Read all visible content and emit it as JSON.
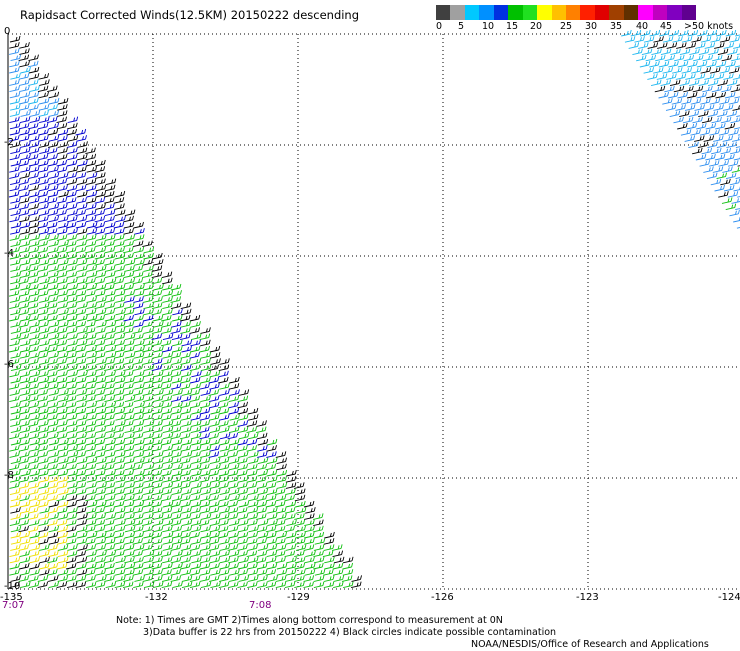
{
  "title": "Rapidsact Corrected Winds(12.5KM) 20150222 descending",
  "colorbar": {
    "colors": [
      "#404040",
      "#a0a0a0",
      "#00c8ff",
      "#0090ff",
      "#0030e0",
      "#00c000",
      "#20e020",
      "#ffff00",
      "#ffc000",
      "#ff8000",
      "#ff2000",
      "#e00000",
      "#a04000",
      "#603000",
      "#ff00ff",
      "#c000c0",
      "#8000c0",
      "#600090"
    ],
    "labels": [
      "0",
      "5",
      "10",
      "15",
      "20",
      "25",
      "30",
      "35",
      "40",
      "45",
      ">50 knots"
    ]
  },
  "map": {
    "lat_labels": [
      "0",
      "-2",
      "-4",
      "-6",
      "-8",
      "-10"
    ],
    "lon_labels": [
      "-135",
      "-132",
      "-129",
      "-126",
      "-123",
      "-124"
    ],
    "time_labels": [
      "7:07",
      "7:08"
    ]
  },
  "notes": {
    "line1": "Note: 1) Times are GMT 2)Times along bottom correspond to measurement at 0N",
    "line2": "3)Data buffer is 22 hrs from 20150222 4) Black circles indicate possible contamination",
    "line3": "NOAA/NESDIS/Office of Research and Applications"
  }
}
